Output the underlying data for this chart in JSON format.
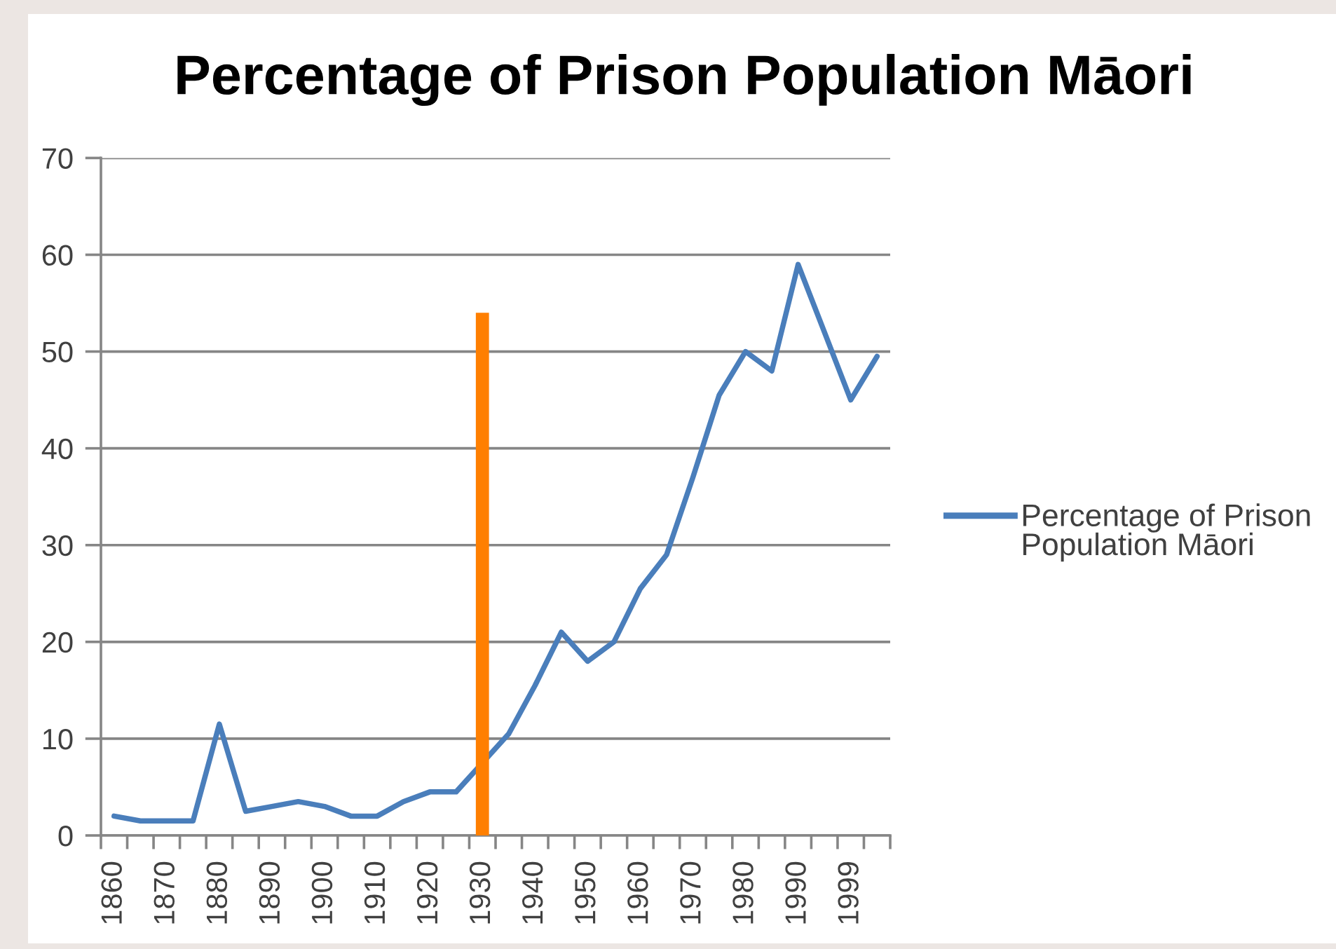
{
  "chart_data": {
    "type": "line",
    "title": "Percentage of Prison Population Māori",
    "categories": [
      "1860",
      null,
      "1870",
      null,
      "1880",
      null,
      "1890",
      null,
      "1900",
      null,
      "1910",
      null,
      "1920",
      null,
      "1930",
      null,
      "1940",
      null,
      "1950",
      null,
      "1960",
      null,
      "1970",
      null,
      "1980",
      null,
      "1990",
      null,
      "1999",
      null
    ],
    "series": [
      {
        "name": "Percentage of Prison Population Māori",
        "color": "#4a7ebb",
        "values": [
          2,
          1.5,
          1.5,
          1.5,
          11.5,
          2.5,
          3,
          3.5,
          3,
          2,
          2,
          3.5,
          4.5,
          4.5,
          null,
          10.5,
          15.5,
          21,
          18,
          20,
          25.5,
          29,
          37,
          45.5,
          50,
          48,
          59,
          52,
          45,
          49.5
        ]
      },
      {
        "type": "bar",
        "color": "#ff7f00",
        "values": [
          null,
          null,
          null,
          null,
          null,
          null,
          null,
          null,
          null,
          null,
          null,
          null,
          null,
          null,
          54,
          null,
          null,
          null,
          null,
          null,
          null,
          null,
          null,
          null,
          null,
          null,
          null,
          null,
          null,
          null
        ]
      }
    ],
    "ylim": [
      0,
      70
    ],
    "yticks": [
      0,
      10,
      20,
      30,
      40,
      50,
      60,
      70
    ],
    "grid": "y",
    "legend": "right",
    "marker": "none",
    "line_style": "solid"
  }
}
